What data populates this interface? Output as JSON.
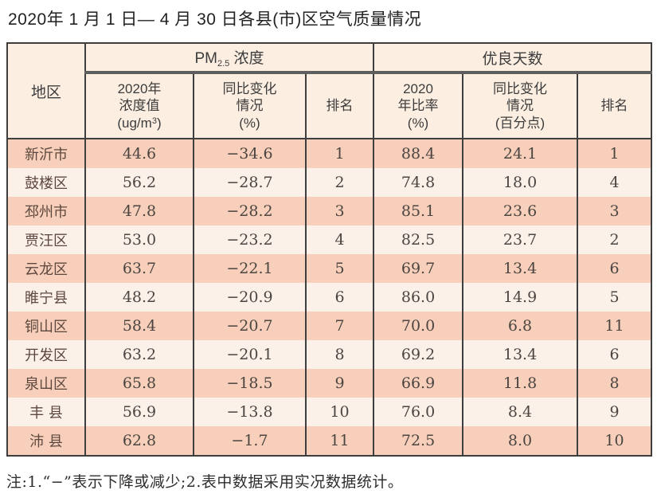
{
  "title": "2020年 1 月 1 日— 4 月 30 日各县(市)区空气质量情况",
  "table": {
    "headers": {
      "region": "地区",
      "pm_group": {
        "pre": "PM",
        "sub": "2.5",
        "post": " 浓度"
      },
      "days_group": "优良天数",
      "pm_value": {
        "l1": "2020年",
        "l2": "浓度值",
        "l3a": "(ug/m",
        "sup": "3",
        "l3b": ")"
      },
      "pm_change": {
        "l1": "同比变化",
        "l2": "情况",
        "l3": "(%)"
      },
      "pm_rank": "排名",
      "days_rate": {
        "l1": "2020",
        "l2": "年比率",
        "l3": "(%)"
      },
      "days_change": {
        "l1": "同比变化",
        "l2": "情况",
        "l3": "(百分点)"
      },
      "days_rank": "排名"
    },
    "rows": [
      {
        "region": "新沂市",
        "pm_value": "44.6",
        "pm_change": "−34.6",
        "pm_rank": "1",
        "rate": "88.4",
        "rate_change": "24.1",
        "rank": "1"
      },
      {
        "region": "鼓楼区",
        "pm_value": "56.2",
        "pm_change": "−28.7",
        "pm_rank": "2",
        "rate": "74.8",
        "rate_change": "18.0",
        "rank": "4"
      },
      {
        "region": "邳州市",
        "pm_value": "47.8",
        "pm_change": "−28.2",
        "pm_rank": "3",
        "rate": "85.1",
        "rate_change": "23.6",
        "rank": "3"
      },
      {
        "region": "贾汪区",
        "pm_value": "53.0",
        "pm_change": "−23.2",
        "pm_rank": "4",
        "rate": "82.5",
        "rate_change": "23.7",
        "rank": "2"
      },
      {
        "region": "云龙区",
        "pm_value": "63.7",
        "pm_change": "−22.1",
        "pm_rank": "5",
        "rate": "69.7",
        "rate_change": "13.4",
        "rank": "6"
      },
      {
        "region": "睢宁县",
        "pm_value": "48.2",
        "pm_change": "−20.9",
        "pm_rank": "6",
        "rate": "86.0",
        "rate_change": "14.9",
        "rank": "5"
      },
      {
        "region": "铜山区",
        "pm_value": "58.4",
        "pm_change": "−20.7",
        "pm_rank": "7",
        "rate": "70.0",
        "rate_change": "6.8",
        "rank": "11"
      },
      {
        "region": "开发区",
        "pm_value": "63.2",
        "pm_change": "−20.1",
        "pm_rank": "8",
        "rate": "69.2",
        "rate_change": "13.4",
        "rank": "6"
      },
      {
        "region": "泉山区",
        "pm_value": "65.8",
        "pm_change": "−18.5",
        "pm_rank": "9",
        "rate": "66.9",
        "rate_change": "11.8",
        "rank": "8"
      },
      {
        "region": "丰 县",
        "pm_value": "56.9",
        "pm_change": "−13.8",
        "pm_rank": "10",
        "rate": "76.0",
        "rate_change": "8.4",
        "rank": "9"
      },
      {
        "region": "沛 县",
        "pm_value": "62.8",
        "pm_change": "−1.7",
        "pm_rank": "11",
        "rate": "72.5",
        "rate_change": "8.0",
        "rank": "10"
      }
    ]
  },
  "note": "注:1.“−”表示下降或减少;2.表中数据采用实况数据统计。",
  "colors": {
    "row_salmon": "#f8cfba",
    "row_light": "#fcf1e9",
    "header_bg": "#fcefe2",
    "border_dark": "#3e3e3e",
    "group_underline": "#5e5e5e",
    "title_text": "#222222",
    "data_text": "#4b4542"
  }
}
